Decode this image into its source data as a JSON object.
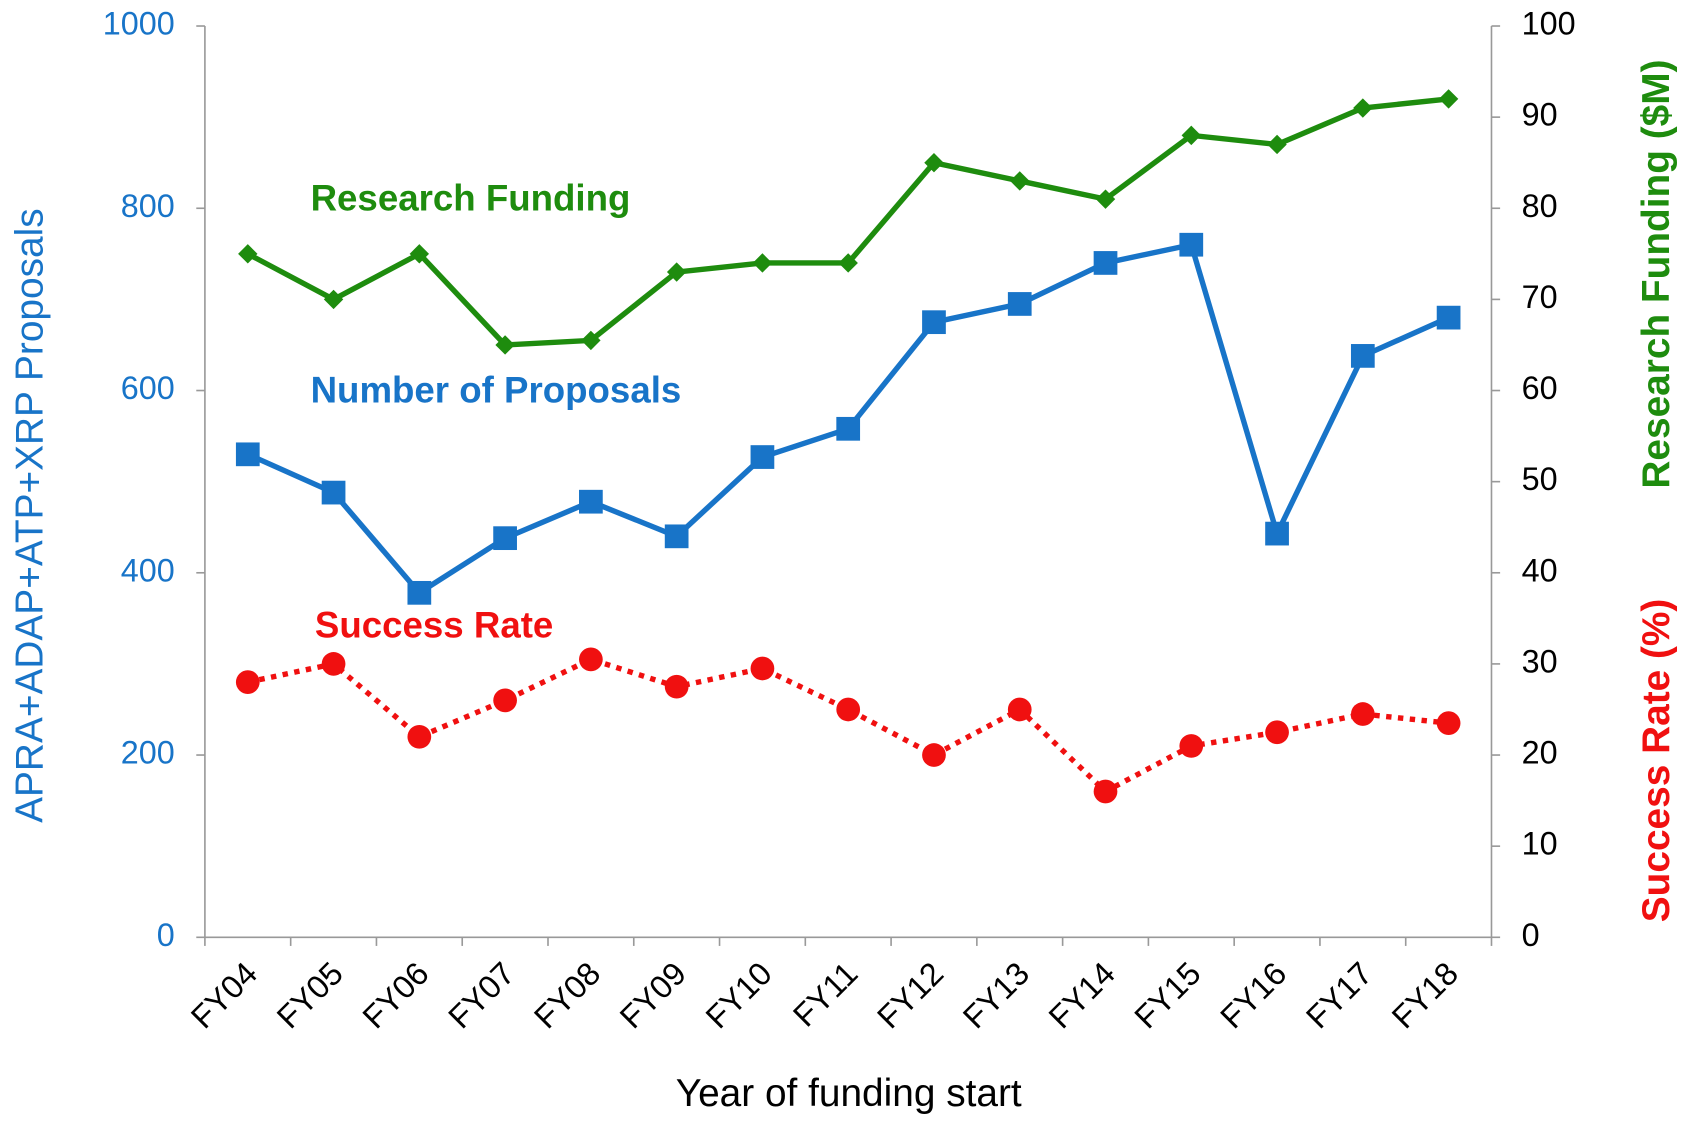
{
  "chart_data": {
    "type": "line",
    "xlabel": "Year of funding start",
    "ylabel": "APRA+ADAP+ATP+XRP Proposals",
    "y2labels": [
      "Research Funding ($M)",
      "Success Rate (%)"
    ],
    "categories": [
      "FY04",
      "FY05",
      "FY06",
      "FY07",
      "FY08",
      "FY09",
      "FY10",
      "FY11",
      "FY12",
      "FY13",
      "FY14",
      "FY15",
      "FY16",
      "FY17",
      "FY18"
    ],
    "ylim": [
      0,
      1000
    ],
    "yticks": [
      0,
      200,
      400,
      600,
      800,
      1000
    ],
    "y2lim": [
      0,
      100
    ],
    "y2ticks": [
      0,
      10,
      20,
      30,
      40,
      50,
      60,
      70,
      80,
      90,
      100
    ],
    "series": [
      {
        "name": "Research Funding",
        "color": "#1e8c0e",
        "marker": "diamond",
        "dash": "solid",
        "axis": "y2",
        "values": [
          75,
          70,
          75,
          65,
          65.5,
          73,
          74,
          74,
          85,
          83,
          81,
          88,
          87,
          91,
          92
        ]
      },
      {
        "name": "Number of Proposals",
        "color": "#1874c8",
        "marker": "square",
        "dash": "solid",
        "axis": "y",
        "values": [
          530,
          488,
          378,
          438,
          478,
          440,
          527,
          558,
          675,
          695,
          740,
          760,
          443,
          638,
          680
        ]
      },
      {
        "name": "Success Rate",
        "color": "#f01010",
        "marker": "circle",
        "dash": "dotted",
        "axis": "y2",
        "values": [
          28,
          30,
          22,
          26,
          30.5,
          27.5,
          29.5,
          25,
          20,
          25,
          16,
          21,
          22.5,
          24.5,
          23.5
        ]
      }
    ]
  }
}
